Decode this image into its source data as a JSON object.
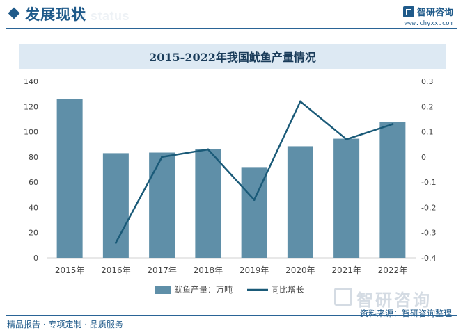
{
  "header": {
    "title": "发展现状",
    "subtitle": "ent status",
    "brand_name": "智研咨询",
    "brand_url": "www.chyxx.com"
  },
  "colors": {
    "bar": "#5f8fa8",
    "line": "#1a5a78",
    "accent": "#1f5a8a",
    "title_bg": "#dde9f3"
  },
  "chart_data": {
    "type": "bar",
    "title": "2015-2022年我国鱿鱼产量情况",
    "categories": [
      "2015年",
      "2016年",
      "2017年",
      "2018年",
      "2019年",
      "2020年",
      "2021年",
      "2022年"
    ],
    "series": [
      {
        "name": "鱿鱼产量：万吨",
        "type": "bar",
        "axis": "left",
        "values": [
          126,
          83,
          83.5,
          86,
          72,
          88.5,
          94.5,
          107.5
        ]
      },
      {
        "name": "同比增长",
        "type": "line",
        "axis": "right",
        "values": [
          null,
          -0.34,
          0.0,
          0.03,
          -0.17,
          0.22,
          0.07,
          0.13
        ]
      }
    ],
    "y_left": {
      "ylim": [
        0,
        140
      ],
      "ticks": [
        "0",
        "20",
        "40",
        "60",
        "80",
        "100",
        "120",
        "140"
      ]
    },
    "y_right": {
      "ylim": [
        -0.4,
        0.3
      ],
      "ticks": [
        "-0.4",
        "-0.3",
        "-0.2",
        "-0.1",
        "0",
        "0.1",
        "0.2",
        "0.3"
      ]
    },
    "legend_position": "bottom-center",
    "grid": false
  },
  "footer": {
    "left_text": "精品报告 · 专项定制 · 品质服务",
    "source": "资料来源：智研咨询整理",
    "watermark": "智研咨询"
  }
}
